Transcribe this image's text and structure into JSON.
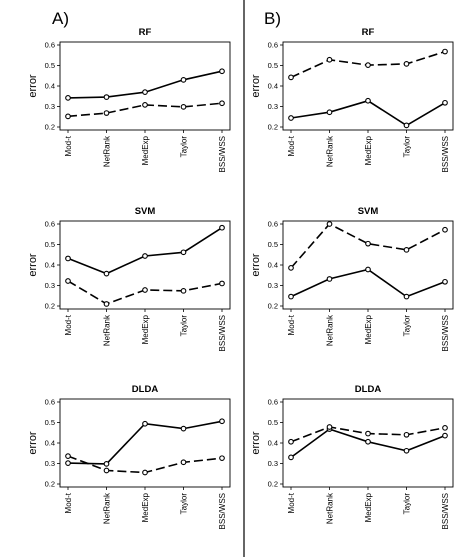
{
  "panel_labels": [
    "A)",
    "B)"
  ],
  "chart_data": [
    {
      "type": "line",
      "panel": "A)",
      "title": "RF",
      "ylabel": "error",
      "ylim": [
        0.2,
        0.6
      ],
      "yticks": [
        "0.2",
        "0.3",
        "0.4",
        "0.5",
        "0.6"
      ],
      "categories": [
        "Mod-t",
        "NetRank",
        "MedExp",
        "Taylor",
        "BSS/WSS"
      ],
      "series": [
        {
          "style": "solid",
          "values": [
            0.342,
            0.346,
            0.37,
            0.43,
            0.472
          ]
        },
        {
          "style": "dashed",
          "values": [
            0.252,
            0.268,
            0.308,
            0.298,
            0.316
          ]
        }
      ]
    },
    {
      "type": "line",
      "panel": "B)",
      "title": "RF",
      "ylabel": "error",
      "ylim": [
        0.2,
        0.6
      ],
      "yticks": [
        "0.2",
        "0.3",
        "0.4",
        "0.5",
        "0.6"
      ],
      "categories": [
        "Mod-t",
        "NetRank",
        "MedExp",
        "Taylor",
        "BSS/WSS"
      ],
      "series": [
        {
          "style": "solid",
          "values": [
            0.244,
            0.272,
            0.328,
            0.208,
            0.318
          ]
        },
        {
          "style": "dashed",
          "values": [
            0.442,
            0.528,
            0.502,
            0.508,
            0.568
          ]
        }
      ]
    },
    {
      "type": "line",
      "panel": "A)",
      "title": "SVM",
      "ylabel": "error",
      "ylim": [
        0.2,
        0.6
      ],
      "yticks": [
        "0.2",
        "0.3",
        "0.4",
        "0.5",
        "0.6"
      ],
      "categories": [
        "Mod-t",
        "NetRank",
        "MedExp",
        "Taylor",
        "BSS/WSS"
      ],
      "series": [
        {
          "style": "solid",
          "values": [
            0.432,
            0.358,
            0.444,
            0.462,
            0.582
          ]
        },
        {
          "style": "dashed",
          "values": [
            0.322,
            0.21,
            0.278,
            0.274,
            0.31
          ]
        }
      ]
    },
    {
      "type": "line",
      "panel": "B)",
      "title": "SVM",
      "ylabel": "error",
      "ylim": [
        0.2,
        0.6
      ],
      "yticks": [
        "0.2",
        "0.3",
        "0.4",
        "0.5",
        "0.6"
      ],
      "categories": [
        "Mod-t",
        "NetRank",
        "MedExp",
        "Taylor",
        "BSS/WSS"
      ],
      "series": [
        {
          "style": "solid",
          "values": [
            0.246,
            0.332,
            0.378,
            0.246,
            0.318
          ]
        },
        {
          "style": "dashed",
          "values": [
            0.386,
            0.6,
            0.504,
            0.474,
            0.572
          ]
        }
      ]
    },
    {
      "type": "line",
      "panel": "A)",
      "title": "DLDA",
      "ylabel": "error",
      "ylim": [
        0.2,
        0.6
      ],
      "yticks": [
        "0.2",
        "0.3",
        "0.4",
        "0.5",
        "0.6"
      ],
      "categories": [
        "Mod-t",
        "NetRank",
        "MedExp",
        "Taylor",
        "BSS/WSS"
      ],
      "series": [
        {
          "style": "solid",
          "values": [
            0.302,
            0.298,
            0.494,
            0.47,
            0.506
          ]
        },
        {
          "style": "dashed",
          "values": [
            0.336,
            0.266,
            0.256,
            0.306,
            0.326
          ]
        }
      ]
    },
    {
      "type": "line",
      "panel": "B)",
      "title": "DLDA",
      "ylabel": "error",
      "ylim": [
        0.2,
        0.6
      ],
      "yticks": [
        "0.2",
        "0.3",
        "0.4",
        "0.5",
        "0.6"
      ],
      "categories": [
        "Mod-t",
        "NetRank",
        "MedExp",
        "Taylor",
        "BSS/WSS"
      ],
      "series": [
        {
          "style": "solid",
          "values": [
            0.33,
            0.468,
            0.406,
            0.362,
            0.436
          ]
        },
        {
          "style": "dashed",
          "values": [
            0.406,
            0.478,
            0.446,
            0.44,
            0.474
          ]
        }
      ]
    }
  ]
}
